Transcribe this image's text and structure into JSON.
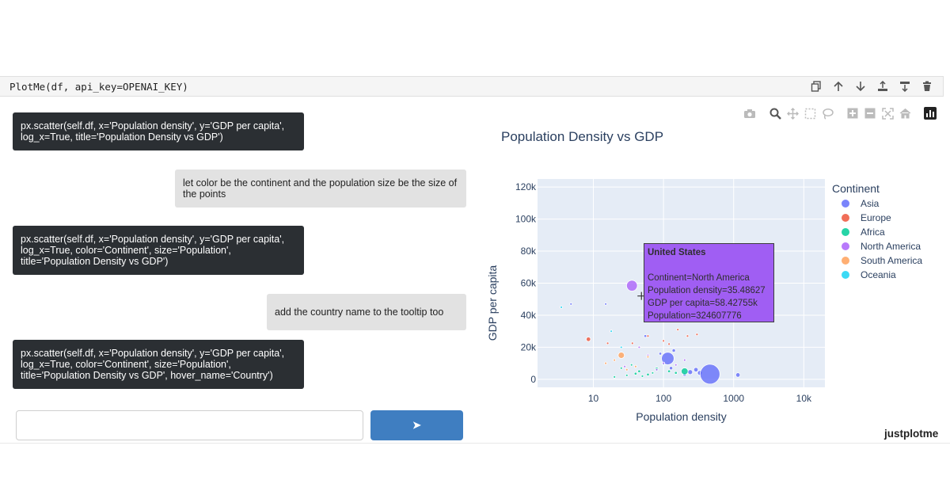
{
  "cell": {
    "code": "PlotMe(df, api_key=OPENAI_KEY)"
  },
  "cell_tools": [
    "copy-icon",
    "arrow-up-icon",
    "arrow-down-icon",
    "insert-above-icon",
    "insert-below-icon",
    "trash-icon"
  ],
  "chat": {
    "messages": [
      {
        "role": "bot",
        "text": "px.scatter(self.df, x='Population density', y='GDP per capita',\nlog_x=True, title='Population Density vs GDP')"
      },
      {
        "role": "user",
        "text": "let color be the continent and the population size be the size of the points"
      },
      {
        "role": "bot",
        "text": "px.scatter(self.df, x='Population density', y='GDP per capita',\nlog_x=True, color='Continent', size='Population',\ntitle='Population Density vs GDP')"
      },
      {
        "role": "user",
        "text": "add the country name to the tooltip too"
      },
      {
        "role": "bot",
        "text": "px.scatter(self.df, x='Population density', y='GDP per capita',\nlog_x=True, color='Continent', size='Population',\ntitle='Population Density vs GDP', hover_name='Country')"
      }
    ],
    "input_placeholder": "",
    "send_label": "➤"
  },
  "modebar": [
    "camera-icon",
    "zoom-icon",
    "pan-icon",
    "box-select-icon",
    "lasso-icon",
    "zoom-in-icon",
    "zoom-out-icon",
    "autoscale-icon",
    "reset-axes-icon",
    "plotly-logo-icon"
  ],
  "chart_data": {
    "type": "scatter",
    "title": "Population Density vs GDP",
    "xlabel": "Population density",
    "ylabel": "GDP per capita",
    "x_scale": "log",
    "xlim": [
      1.6,
      20000
    ],
    "ylim": [
      -5000,
      125000
    ],
    "x_ticks": [
      10,
      100,
      1000,
      10000
    ],
    "x_tick_labels": [
      "10",
      "100",
      "1000",
      "10k"
    ],
    "y_ticks": [
      0,
      20000,
      40000,
      60000,
      80000,
      100000,
      120000
    ],
    "y_tick_labels": [
      "0",
      "20k",
      "40k",
      "60k",
      "80k",
      "100k",
      "120k"
    ],
    "grid": true,
    "legend_title": "Continent",
    "legend_placement": "right",
    "series": [
      {
        "name": "Asia",
        "color": "#636efa",
        "points": [
          [
            4.8,
            47000,
            1
          ],
          [
            15,
            47000,
            1
          ],
          [
            90,
            16000,
            2
          ],
          [
            115,
            13000,
            40
          ],
          [
            128,
            7000,
            3
          ],
          [
            140,
            18000,
            3
          ],
          [
            240,
            4500,
            6
          ],
          [
            290,
            6000,
            5
          ],
          [
            330,
            4000,
            6
          ],
          [
            460,
            3200,
            100
          ],
          [
            1150,
            2700,
            5
          ],
          [
            55,
            27000,
            2
          ],
          [
            200,
            3000,
            3
          ]
        ]
      },
      {
        "name": "Europe",
        "color": "#EF553B",
        "points": [
          [
            8.5,
            25000,
            5
          ],
          [
            16,
            22500,
            1
          ],
          [
            36,
            22500,
            1
          ],
          [
            60,
            27000,
            1
          ],
          [
            100,
            24000,
            1
          ],
          [
            120,
            22000,
            1
          ],
          [
            160,
            31000,
            1
          ],
          [
            220,
            27000,
            1
          ],
          [
            300,
            28000,
            1
          ]
        ]
      },
      {
        "name": "Africa",
        "color": "#00cc96",
        "points": [
          [
            30,
            2500,
            1
          ],
          [
            40,
            3500,
            2
          ],
          [
            45,
            5000,
            2
          ],
          [
            50,
            2000,
            1
          ],
          [
            60,
            3000,
            2
          ],
          [
            70,
            4000,
            1
          ],
          [
            80,
            6500,
            3
          ],
          [
            100,
            9500,
            1
          ],
          [
            120,
            5000,
            2
          ],
          [
            150,
            4000,
            2
          ],
          [
            200,
            5000,
            12
          ],
          [
            20,
            1500,
            1
          ],
          [
            25,
            7000,
            1
          ],
          [
            35,
            9000,
            1
          ]
        ]
      },
      {
        "name": "North America",
        "color": "#ab63fa",
        "points": [
          [
            35.48627,
            58427.55,
            30
          ],
          [
            60,
            15000,
            1
          ],
          [
            80,
            6000,
            1
          ],
          [
            100,
            10000,
            1
          ],
          [
            150,
            9000,
            1
          ],
          [
            200,
            12000,
            1
          ],
          [
            28,
            8000,
            1
          ],
          [
            45,
            20000,
            1
          ]
        ]
      },
      {
        "name": "South America",
        "color": "#FFA15A",
        "points": [
          [
            25,
            15000,
            10
          ],
          [
            15,
            10000,
            1
          ],
          [
            20,
            12000,
            1
          ],
          [
            30,
            6000,
            1
          ],
          [
            40,
            8000,
            1
          ],
          [
            60,
            14000,
            1
          ]
        ]
      },
      {
        "name": "Oceania",
        "color": "#19d3f3",
        "points": [
          [
            3.5,
            45000,
            1
          ],
          [
            18,
            30000,
            1
          ],
          [
            25,
            20000,
            1
          ]
        ]
      }
    ],
    "hover": {
      "title": "United States",
      "lines": [
        "Continent=North America",
        "Population density=35.48627",
        "GDP per capita=58.42755k",
        "Population=324607776"
      ]
    }
  },
  "brand": "justplotme"
}
